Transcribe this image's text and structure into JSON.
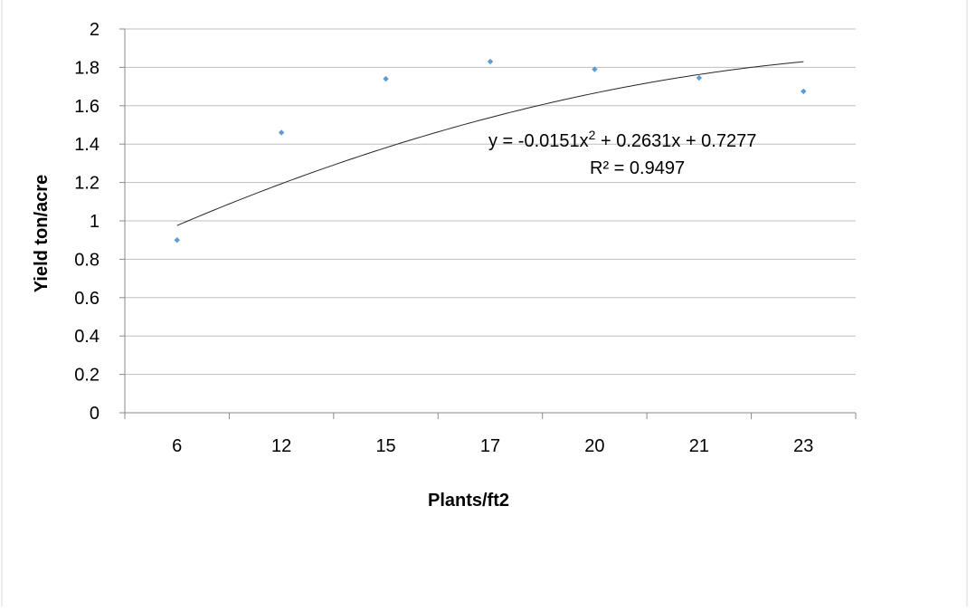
{
  "chart_data": {
    "type": "scatter",
    "title": "",
    "xlabel": "Plants/ft2",
    "ylabel": "Yield  ton/acre",
    "categories": [
      "6",
      "12",
      "15",
      "17",
      "20",
      "21",
      "23"
    ],
    "series": [
      {
        "values": [
          0.9,
          1.46,
          1.74,
          1.83,
          1.79,
          1.745,
          1.675
        ]
      }
    ],
    "ylim": [
      0,
      2
    ],
    "y_ticks": [
      "0",
      "0.2",
      "0.4",
      "0.6",
      "0.8",
      "1",
      "1.2",
      "1.4",
      "1.6",
      "1.8",
      "2"
    ],
    "grid": "horizontal",
    "legend": "none",
    "trendline": {
      "type": "polynomial-2",
      "coefficients": {
        "a": -0.0151,
        "b": 0.2631,
        "c": 0.7277
      },
      "equation_prefix": "y = -0.0151x",
      "equation_suffix": " + 0.2631x + 0.7277",
      "exponent": "2",
      "r_squared_label": "R² = 0.9497"
    },
    "colors": {
      "marker": "#5b9bd5",
      "gridline": "#bfbfbf",
      "axis": "#888888",
      "trendline": "#262626"
    }
  }
}
